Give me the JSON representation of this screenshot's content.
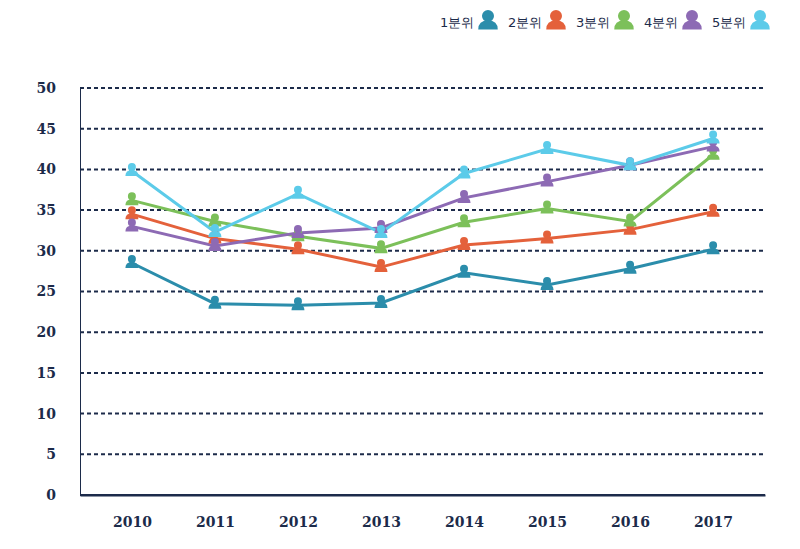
{
  "chart_data": {
    "type": "line",
    "categories": [
      "2010",
      "2011",
      "2012",
      "2013",
      "2014",
      "2015",
      "2016",
      "2017"
    ],
    "series": [
      {
        "name": "1분위",
        "color": "#2b8dab",
        "marker": "person",
        "values": [
          28.5,
          23.5,
          23.3,
          23.6,
          27.3,
          25.8,
          27.8,
          30.2
        ]
      },
      {
        "name": "2분위",
        "color": "#e4613b",
        "marker": "person",
        "values": [
          34.5,
          31.5,
          30.2,
          28.0,
          30.7,
          31.5,
          32.6,
          34.8
        ]
      },
      {
        "name": "3분위",
        "color": "#7cc05a",
        "marker": "person",
        "values": [
          36.2,
          33.6,
          31.8,
          30.3,
          33.5,
          35.2,
          33.6,
          41.8
        ]
      },
      {
        "name": "4분위",
        "color": "#8d6ab4",
        "marker": "person",
        "values": [
          33.0,
          30.6,
          32.2,
          32.8,
          36.5,
          38.5,
          40.5,
          42.8
        ]
      },
      {
        "name": "5분위",
        "color": "#5ccbe9",
        "marker": "person",
        "values": [
          39.8,
          32.3,
          37.0,
          32.2,
          39.5,
          42.5,
          40.5,
          43.8
        ]
      }
    ],
    "ylim": [
      0,
      50
    ],
    "yticks": [
      0,
      5,
      10,
      15,
      20,
      25,
      30,
      35,
      40,
      45,
      50
    ],
    "grid": true,
    "legend": "top-right"
  }
}
